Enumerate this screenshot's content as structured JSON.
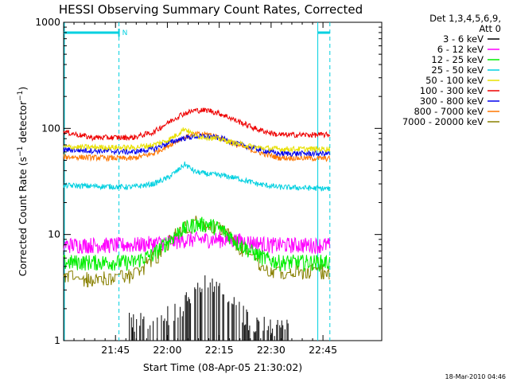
{
  "title": "HESSI Observing Summary Count Rates, Corrected",
  "footer_stamp": "18-Mar-2010 04:46",
  "legend": {
    "header_line1": "Det 1,3,4,5,6,9,",
    "header_line2": "Att 0"
  },
  "chart_data": {
    "type": "line",
    "xlabel": "Start Time (08-Apr-05 21:30:02)",
    "ylabel": "Corrected Count Rate (s⁻¹ detector⁻¹)",
    "ylabel_parts": {
      "main": "Corrected Count Rate (s",
      "sup1": "−1",
      "mid": " detector",
      "sup2": "−1",
      "end": ")"
    },
    "x_unit": "minutes since 21:30:02",
    "xlim": [
      0,
      92
    ],
    "ylim": [
      1,
      1000
    ],
    "yscale": "log",
    "x_ticks": [
      {
        "value": 15,
        "label": "21:45"
      },
      {
        "value": 30,
        "label": "22:00"
      },
      {
        "value": 45,
        "label": "22:15"
      },
      {
        "value": 60,
        "label": "22:30"
      },
      {
        "value": 75,
        "label": "22:45"
      }
    ],
    "y_ticks": [
      {
        "value": 1,
        "label": "1"
      },
      {
        "value": 10,
        "label": "10"
      },
      {
        "value": 100,
        "label": "100"
      },
      {
        "value": 1000,
        "label": "1000"
      }
    ],
    "markers": {
      "color": "#00d0e0",
      "night_label": "N",
      "night_interval": [
        0,
        16
      ],
      "night_interval2": [
        73.5,
        77
      ],
      "vertical_lines": [
        16,
        73.5,
        77
      ]
    },
    "series": [
      {
        "name": "3 - 6 keV",
        "color": "#000000",
        "kind": "sparse",
        "x": [
          20,
          28,
          34,
          36,
          38,
          40,
          42,
          44,
          46,
          48,
          50,
          52,
          54,
          60
        ],
        "y": [
          1.4,
          1.5,
          1.8,
          2.3,
          2.7,
          3.0,
          3.2,
          3.0,
          2.6,
          2.2,
          1.9,
          1.6,
          1.4,
          1.2
        ]
      },
      {
        "name": "6 - 12 keV",
        "color": "#ff00ff",
        "kind": "noisy",
        "x": [
          0,
          20,
          30,
          36,
          42,
          48,
          54,
          60,
          77
        ],
        "y": [
          8.0,
          8.0,
          8.5,
          9.0,
          9.0,
          9.0,
          8.5,
          8.0,
          8.0
        ]
      },
      {
        "name": "12 - 25 keV",
        "color": "#00ee00",
        "kind": "noisy",
        "x": [
          0,
          20,
          26,
          30,
          34,
          38,
          42,
          46,
          50,
          54,
          58,
          62,
          77
        ],
        "y": [
          5.5,
          5.5,
          6.5,
          8.5,
          11.0,
          12.5,
          12.5,
          11.0,
          8.5,
          7.0,
          6.0,
          5.5,
          5.5
        ]
      },
      {
        "name": "25 - 50 keV",
        "color": "#00d0e0",
        "kind": "noisy",
        "x": [
          0,
          20,
          26,
          30,
          33,
          35,
          38,
          42,
          46,
          50,
          56,
          62,
          77
        ],
        "y": [
          29,
          28,
          30,
          34,
          40,
          46,
          39,
          37,
          36,
          34,
          30,
          28,
          27
        ]
      },
      {
        "name": "50 - 100 keV",
        "color": "#e8e000",
        "kind": "noisy",
        "x": [
          0,
          20,
          26,
          30,
          33,
          35,
          38,
          42,
          46,
          50,
          56,
          62,
          77
        ],
        "y": [
          67,
          66,
          70,
          77,
          88,
          100,
          85,
          82,
          78,
          72,
          66,
          64,
          64
        ]
      },
      {
        "name": "100 - 300 keV",
        "color": "#ee0000",
        "kind": "noisy",
        "x": [
          0,
          8,
          20,
          26,
          30,
          34,
          38,
          42,
          46,
          50,
          56,
          62,
          77
        ],
        "y": [
          93,
          82,
          82,
          92,
          112,
          135,
          148,
          148,
          135,
          118,
          98,
          87,
          87
        ]
      },
      {
        "name": "300 - 800 keV",
        "color": "#0000ee",
        "kind": "noisy",
        "x": [
          0,
          20,
          26,
          30,
          34,
          38,
          42,
          46,
          50,
          56,
          62,
          77
        ],
        "y": [
          63,
          60,
          64,
          72,
          80,
          84,
          84,
          80,
          72,
          64,
          58,
          58
        ]
      },
      {
        "name": "800 - 7000 keV",
        "color": "#ff7700",
        "kind": "noisy",
        "x": [
          0,
          20,
          26,
          30,
          34,
          38,
          42,
          46,
          50,
          56,
          62,
          77
        ],
        "y": [
          54,
          52,
          58,
          68,
          80,
          88,
          88,
          80,
          70,
          60,
          53,
          52
        ]
      },
      {
        "name": "7000 - 20000 keV",
        "color": "#888000",
        "kind": "noisy",
        "x": [
          0,
          10,
          18,
          22,
          26,
          30,
          34,
          38,
          42,
          46,
          50,
          54,
          58,
          62,
          66,
          77
        ],
        "y": [
          4.0,
          3.8,
          4.0,
          4.5,
          6.0,
          8.5,
          11.0,
          13.0,
          12.5,
          10.5,
          8.0,
          6.0,
          5.0,
          4.5,
          4.5,
          4.5
        ]
      }
    ]
  }
}
